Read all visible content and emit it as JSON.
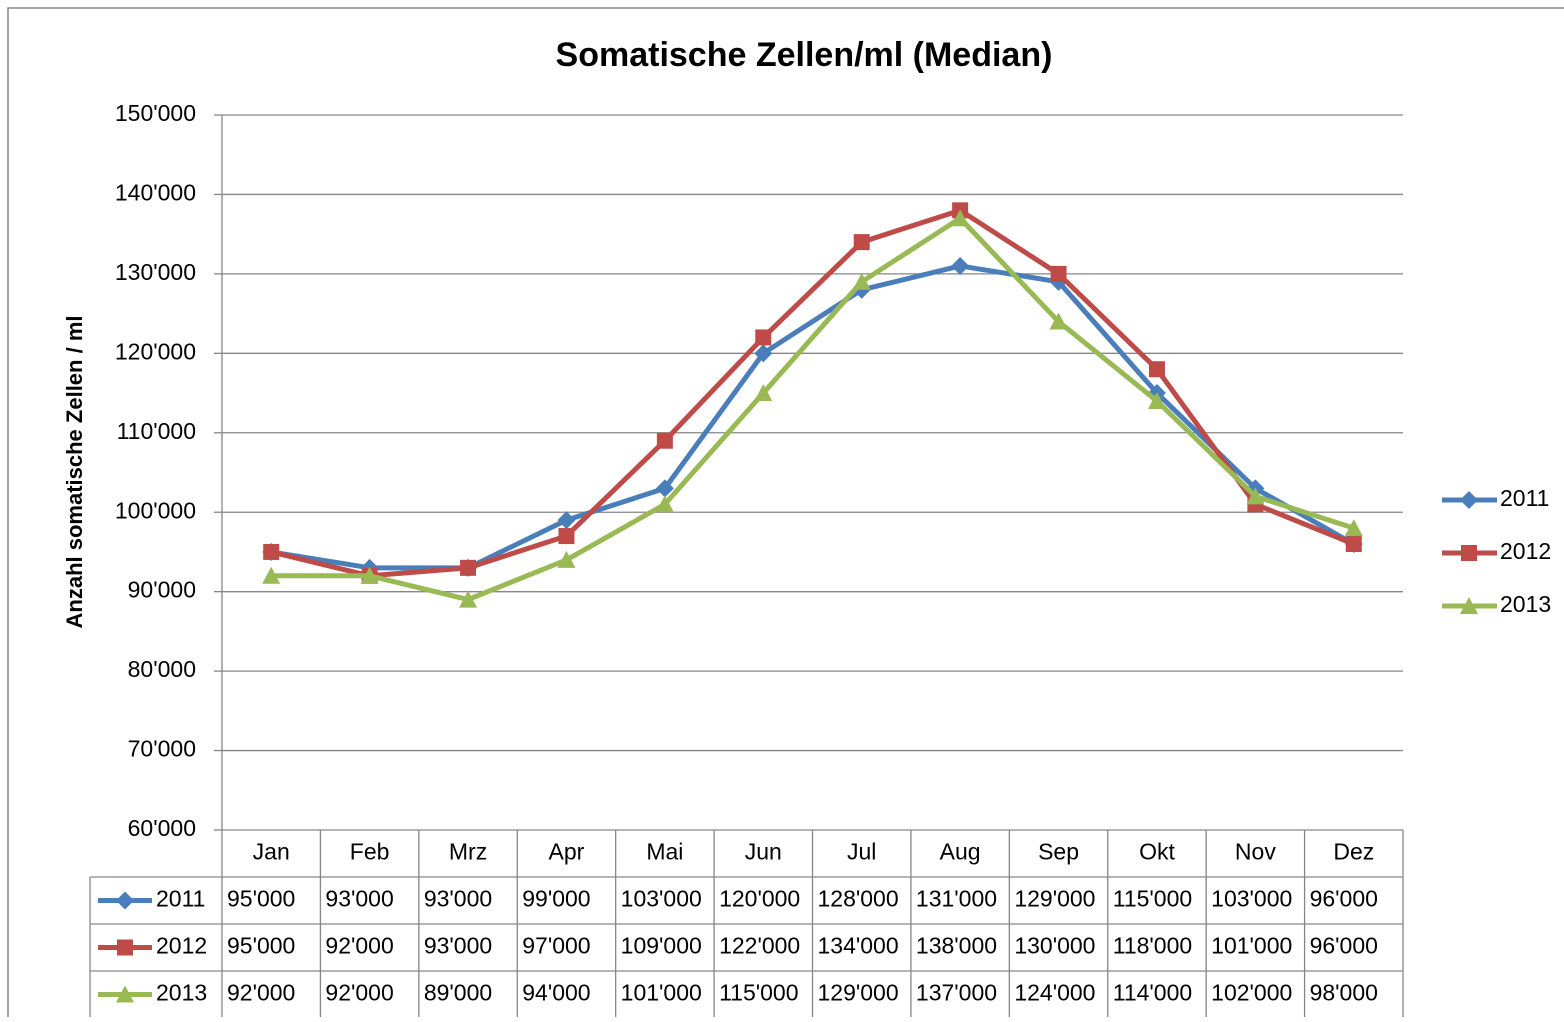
{
  "chart_data": {
    "type": "line",
    "title": "Somatische Zellen/ml (Median)",
    "y_label": "Anzahl somatische Zellen / ml",
    "categories": [
      "Jan",
      "Feb",
      "Mrz",
      "Apr",
      "Mai",
      "Jun",
      "Jul",
      "Aug",
      "Sep",
      "Okt",
      "Nov",
      "Dez"
    ],
    "series": [
      {
        "name": "2011",
        "color": "#4a7ebb",
        "marker": "diamond",
        "values": [
          95000,
          93000,
          93000,
          99000,
          103000,
          120000,
          128000,
          131000,
          129000,
          115000,
          103000,
          96000
        ],
        "value_labels": [
          "95'000",
          "93'000",
          "93'000",
          "99'000",
          "103'000",
          "120'000",
          "128'000",
          "131'000",
          "129'000",
          "115'000",
          "103'000",
          "96'000"
        ]
      },
      {
        "name": "2012",
        "color": "#be4b48",
        "marker": "square",
        "values": [
          95000,
          92000,
          93000,
          97000,
          109000,
          122000,
          134000,
          138000,
          130000,
          118000,
          101000,
          96000
        ],
        "value_labels": [
          "95'000",
          "92'000",
          "93'000",
          "97'000",
          "109'000",
          "122'000",
          "134'000",
          "138'000",
          "130'000",
          "118'000",
          "101'000",
          "96'000"
        ]
      },
      {
        "name": "2013",
        "color": "#98b954",
        "marker": "triangle",
        "values": [
          92000,
          92000,
          89000,
          94000,
          101000,
          115000,
          129000,
          137000,
          124000,
          114000,
          102000,
          98000
        ],
        "value_labels": [
          "92'000",
          "92'000",
          "89'000",
          "94'000",
          "101'000",
          "115'000",
          "129'000",
          "137'000",
          "124'000",
          "114'000",
          "102'000",
          "98'000"
        ]
      }
    ],
    "ylim": [
      60000,
      150000
    ],
    "yticks": [
      {
        "value": 60000,
        "label": "60'000"
      },
      {
        "value": 70000,
        "label": "70'000"
      },
      {
        "value": 80000,
        "label": "80'000"
      },
      {
        "value": 90000,
        "label": "90'000"
      },
      {
        "value": 100000,
        "label": "100'000"
      },
      {
        "value": 110000,
        "label": "110'000"
      },
      {
        "value": 120000,
        "label": "120'000"
      },
      {
        "value": 130000,
        "label": "130'000"
      },
      {
        "value": 140000,
        "label": "140'000"
      },
      {
        "value": 150000,
        "label": "150'000"
      }
    ],
    "grid": true,
    "legend": "right",
    "data_table": true
  }
}
